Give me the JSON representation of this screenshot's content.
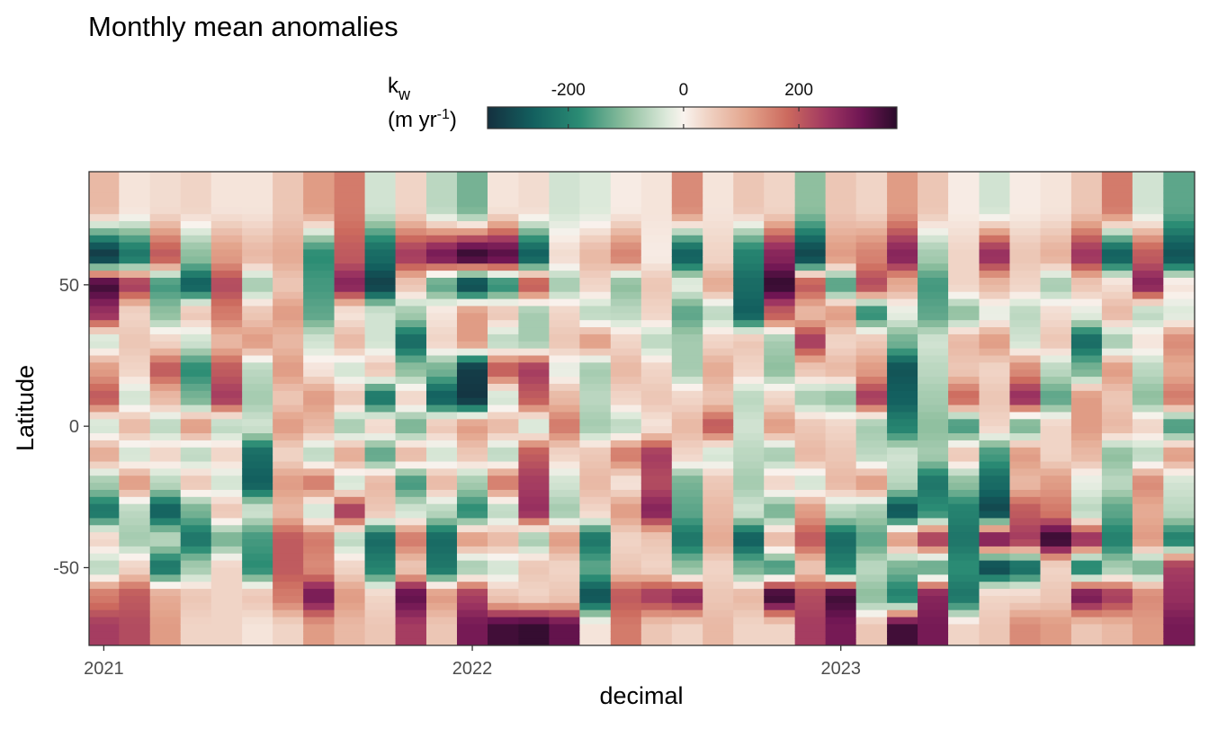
{
  "chart_data": {
    "type": "heatmap",
    "title": "Monthly mean anomalies",
    "xlabel": "decimal",
    "ylabel": "Latitude",
    "xlim": [
      2020.96,
      2023.96
    ],
    "ylim": [
      -77.5,
      90
    ],
    "x_ticks": [
      {
        "value": 2021,
        "label": "2021"
      },
      {
        "value": 2022,
        "label": "2022"
      },
      {
        "value": 2023,
        "label": "2023"
      }
    ],
    "y_ticks": [
      {
        "value": 50,
        "label": "50"
      },
      {
        "value": 0,
        "label": "0"
      },
      {
        "value": -50,
        "label": "-50"
      }
    ],
    "grid": false,
    "legend": {
      "position": "top",
      "title_main": "k",
      "title_sub": "w",
      "title_line2_prefix": "(m yr",
      "title_line2_sup": "-1",
      "title_line2_suffix": ")",
      "range": [
        -340,
        370
      ],
      "ticks": [
        {
          "value": -200,
          "label": "-200"
        },
        {
          "value": 0,
          "label": "0"
        },
        {
          "value": 200,
          "label": "200"
        }
      ],
      "stops": [
        {
          "value": -340,
          "color": "#14303f"
        },
        {
          "value": -260,
          "color": "#13605f"
        },
        {
          "value": -180,
          "color": "#2b8c74"
        },
        {
          "value": -100,
          "color": "#8fbf9f"
        },
        {
          "value": -30,
          "color": "#dce9da"
        },
        {
          "value": 0,
          "color": "#f9f3ee"
        },
        {
          "value": 40,
          "color": "#f0d4c6"
        },
        {
          "value": 110,
          "color": "#e3a48c"
        },
        {
          "value": 180,
          "color": "#cc6a5e"
        },
        {
          "value": 250,
          "color": "#9e3561"
        },
        {
          "value": 310,
          "color": "#6e1553"
        },
        {
          "value": 370,
          "color": "#2a0b2a"
        }
      ]
    },
    "months": [
      2021.0,
      2021.083,
      2021.167,
      2021.25,
      2021.333,
      2021.417,
      2021.5,
      2021.583,
      2021.667,
      2021.75,
      2021.833,
      2021.917,
      2022.0,
      2022.083,
      2022.167,
      2022.25,
      2022.333,
      2022.417,
      2022.5,
      2022.583,
      2022.667,
      2022.75,
      2022.833,
      2022.917,
      2023.0,
      2023.083,
      2023.167,
      2023.25,
      2023.333,
      2023.417,
      2023.5,
      2023.583,
      2023.667,
      2023.75,
      2023.833,
      2023.917
    ],
    "lat_bands": [
      {
        "lat": [
          65,
          90
        ],
        "values": [
          80,
          20,
          30,
          40,
          20,
          20,
          60,
          120,
          160,
          -40,
          40,
          -60,
          -120,
          20,
          30,
          -40,
          -30,
          10,
          20,
          140,
          20,
          60,
          40,
          -100,
          60,
          40,
          120,
          60,
          10,
          -40,
          10,
          20,
          60,
          160,
          -40,
          -140
        ]
      },
      {
        "lat": [
          55,
          65
        ],
        "values": [
          -320,
          -220,
          200,
          -100,
          120,
          80,
          100,
          -180,
          200,
          -240,
          240,
          300,
          360,
          330,
          -260,
          30,
          80,
          150,
          10,
          -260,
          40,
          -200,
          280,
          -300,
          120,
          150,
          280,
          -80,
          40,
          260,
          60,
          90,
          250,
          -260,
          200,
          -280
        ]
      },
      {
        "lat": [
          45,
          55
        ],
        "values": [
          350,
          240,
          -160,
          -260,
          220,
          -80,
          60,
          -160,
          280,
          -310,
          60,
          -140,
          -300,
          -180,
          200,
          -80,
          40,
          -100,
          60,
          -20,
          100,
          -240,
          360,
          200,
          -150,
          220,
          100,
          -160,
          40,
          80,
          40,
          -80,
          60,
          30,
          280,
          20
        ]
      },
      {
        "lat": [
          35,
          45
        ],
        "values": [
          260,
          40,
          -100,
          60,
          160,
          60,
          120,
          -140,
          20,
          -40,
          -80,
          20,
          120,
          60,
          -80,
          40,
          -60,
          -60,
          40,
          -140,
          -60,
          -260,
          200,
          80,
          120,
          -180,
          -20,
          -140,
          -100,
          -20,
          -60,
          30,
          -20,
          80,
          -60,
          -30
        ]
      },
      {
        "lat": [
          25,
          35
        ],
        "values": [
          -40,
          60,
          40,
          -40,
          80,
          120,
          80,
          -40,
          80,
          -40,
          -240,
          40,
          120,
          -60,
          -80,
          60,
          120,
          40,
          -60,
          -80,
          40,
          60,
          -80,
          240,
          40,
          60,
          -120,
          -40,
          80,
          120,
          -40,
          60,
          -240,
          -80,
          20,
          140
        ]
      },
      {
        "lat": [
          15,
          25
        ],
        "values": [
          120,
          40,
          200,
          -180,
          200,
          -60,
          120,
          20,
          -40,
          60,
          -100,
          -120,
          -320,
          200,
          240,
          -20,
          -80,
          80,
          40,
          -80,
          100,
          40,
          -100,
          60,
          80,
          120,
          -280,
          -60,
          60,
          40,
          140,
          -60,
          -120,
          120,
          -60,
          100
        ]
      },
      {
        "lat": [
          5,
          15
        ],
        "values": [
          200,
          -40,
          80,
          -120,
          240,
          -80,
          60,
          120,
          60,
          -220,
          40,
          -260,
          -330,
          -40,
          200,
          80,
          -60,
          40,
          60,
          40,
          60,
          -60,
          40,
          -80,
          -100,
          240,
          -260,
          -80,
          180,
          60,
          260,
          -140,
          120,
          60,
          -100,
          160
        ]
      },
      {
        "lat": [
          -5,
          5
        ],
        "values": [
          -40,
          80,
          -60,
          120,
          -60,
          -40,
          120,
          80,
          -80,
          40,
          -120,
          60,
          120,
          80,
          -40,
          160,
          -80,
          -60,
          20,
          80,
          200,
          -40,
          120,
          60,
          40,
          -80,
          -200,
          -100,
          -160,
          40,
          -120,
          40,
          120,
          80,
          40,
          -160
        ]
      },
      {
        "lat": [
          -15,
          -5
        ],
        "values": [
          100,
          -40,
          40,
          -60,
          40,
          -240,
          40,
          -60,
          100,
          -140,
          80,
          -40,
          60,
          -60,
          200,
          40,
          60,
          160,
          240,
          40,
          -40,
          -60,
          -80,
          80,
          60,
          -60,
          -40,
          -80,
          60,
          -160,
          120,
          40,
          80,
          -100,
          -60,
          120
        ]
      },
      {
        "lat": [
          -25,
          -15
        ],
        "values": [
          -80,
          120,
          -60,
          60,
          -40,
          -260,
          120,
          160,
          -40,
          80,
          -160,
          80,
          -80,
          160,
          240,
          -40,
          80,
          20,
          220,
          -120,
          60,
          -80,
          40,
          -40,
          80,
          120,
          -60,
          -220,
          -100,
          -240,
          80,
          120,
          -20,
          -60,
          140,
          -40
        ]
      },
      {
        "lat": [
          -35,
          -25
        ],
        "values": [
          -220,
          -60,
          -260,
          -120,
          60,
          -40,
          80,
          -40,
          240,
          60,
          -40,
          -60,
          -180,
          -60,
          260,
          -80,
          40,
          120,
          280,
          -140,
          80,
          -40,
          -120,
          120,
          -60,
          -80,
          -280,
          -180,
          -200,
          -300,
          200,
          160,
          -60,
          -140,
          100,
          -60
        ]
      },
      {
        "lat": [
          -45,
          -35
        ],
        "values": [
          40,
          -80,
          -60,
          -220,
          -120,
          -160,
          200,
          160,
          -60,
          -240,
          160,
          -240,
          120,
          80,
          -80,
          120,
          -220,
          40,
          60,
          -220,
          100,
          -260,
          80,
          200,
          -240,
          -140,
          120,
          240,
          -220,
          300,
          240,
          360,
          260,
          -200,
          120,
          -200
        ]
      },
      {
        "lat": [
          -55,
          -45
        ],
        "values": [
          -60,
          40,
          -220,
          -80,
          40,
          -180,
          200,
          140,
          40,
          -200,
          60,
          -220,
          -80,
          -40,
          60,
          40,
          -140,
          60,
          40,
          -100,
          40,
          -120,
          -160,
          60,
          -200,
          -60,
          -120,
          -140,
          -180,
          -300,
          -240,
          40,
          -200,
          -80,
          -120,
          240
        ]
      },
      {
        "lat": [
          -65,
          -55
        ],
        "values": [
          160,
          200,
          100,
          60,
          40,
          60,
          160,
          300,
          120,
          40,
          320,
          120,
          240,
          60,
          40,
          60,
          -280,
          200,
          240,
          280,
          60,
          80,
          360,
          220,
          350,
          -100,
          -200,
          280,
          -220,
          40,
          40,
          60,
          300,
          240,
          140,
          260
        ]
      },
      {
        "lat": [
          -77.5,
          -65
        ],
        "values": [
          240,
          220,
          120,
          40,
          40,
          20,
          40,
          120,
          80,
          60,
          240,
          60,
          300,
          350,
          360,
          320,
          20,
          160,
          60,
          40,
          80,
          40,
          40,
          240,
          300,
          60,
          350,
          300,
          40,
          60,
          140,
          120,
          60,
          80,
          120,
          300
        ]
      }
    ]
  }
}
